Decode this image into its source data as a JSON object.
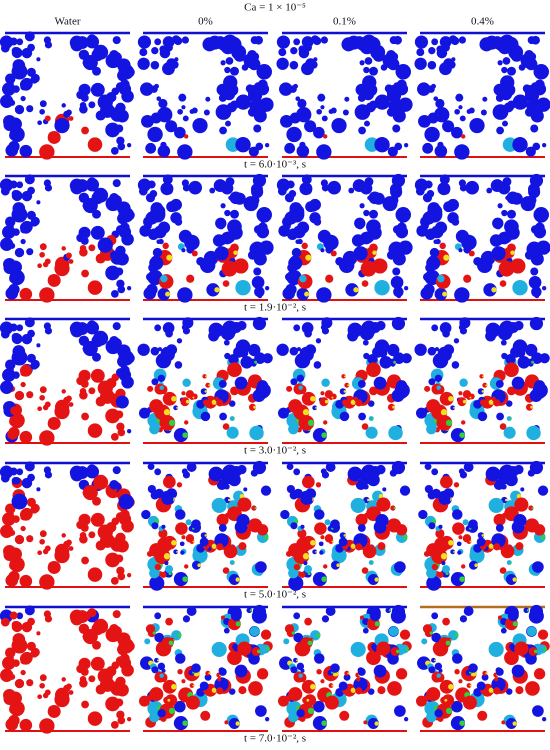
{
  "title": "Ca = 1 × 10⁻⁵",
  "columns": [
    "Water",
    "0%",
    "0.1%",
    "0.4%"
  ],
  "rows": [
    {
      "caption": "t = 6.0·10⁻³, s"
    },
    {
      "caption": "t = 1.9·10⁻², s"
    },
    {
      "caption": "t = 3.0·10⁻², s"
    },
    {
      "caption": "t = 5.0·10⁻², s"
    },
    {
      "caption": "t = 7.0·10⁻², s"
    }
  ]
}
